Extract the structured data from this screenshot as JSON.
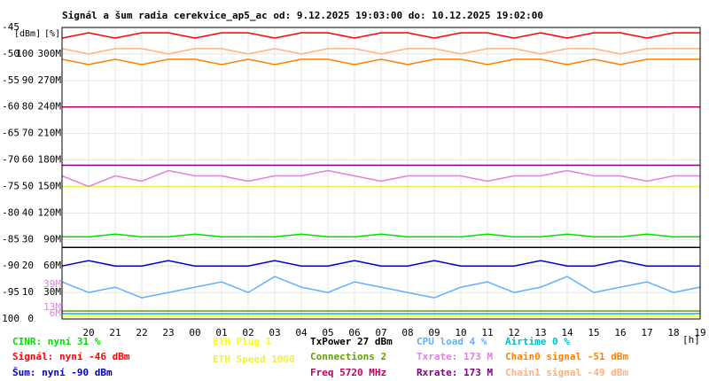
{
  "chart_data": {
    "type": "line",
    "title": "Signál a šum radia cerekvice_ap5_ac od: 9.12.2025 19:03:00 do: 10.12.2025 19:02:00",
    "ylabel": "[dBm]",
    "y2label": "[%]",
    "xlabel": "[h]",
    "xlim": [
      0,
      24
    ],
    "xticks": [
      {
        "value": 1,
        "label": "20"
      },
      {
        "value": 2,
        "label": "21"
      },
      {
        "value": 3,
        "label": "22"
      },
      {
        "value": 4,
        "label": "23"
      },
      {
        "value": 5,
        "label": "00"
      },
      {
        "value": 6,
        "label": "01"
      },
      {
        "value": 7,
        "label": "02"
      },
      {
        "value": 8,
        "label": "03"
      },
      {
        "value": 9,
        "label": "04"
      },
      {
        "value": 10,
        "label": "05"
      },
      {
        "value": 11,
        "label": "06"
      },
      {
        "value": 12,
        "label": "07"
      },
      {
        "value": 13,
        "label": "08"
      },
      {
        "value": 14,
        "label": "09"
      },
      {
        "value": 15,
        "label": "10"
      },
      {
        "value": 16,
        "label": "11"
      },
      {
        "value": 17,
        "label": "12"
      },
      {
        "value": 18,
        "label": "13"
      },
      {
        "value": 19,
        "label": "14"
      },
      {
        "value": 20,
        "label": "15"
      },
      {
        "value": 21,
        "label": "16"
      },
      {
        "value": 22,
        "label": "17"
      },
      {
        "value": 23,
        "label": "18"
      },
      {
        "value": 24,
        "label": "19"
      }
    ],
    "ylim": [
      -100,
      -45
    ],
    "yticks": [
      -45,
      -50,
      -55,
      -60,
      -65,
      -70,
      -75,
      -80,
      -85,
      -90,
      -95,
      -100
    ],
    "y2lim": [
      0,
      110
    ],
    "y2ticks": [
      100,
      90,
      80,
      70,
      60,
      50,
      40,
      30,
      20,
      10,
      0
    ],
    "y3lim": [
      0,
      330
    ],
    "y3ticks": [
      {
        "value": 300,
        "label": "300M"
      },
      {
        "value": 270,
        "label": "270M"
      },
      {
        "value": 240,
        "label": "240M"
      },
      {
        "value": 210,
        "label": "210M"
      },
      {
        "value": 180,
        "label": "180M"
      },
      {
        "value": 150,
        "label": "150M"
      },
      {
        "value": 120,
        "label": "120M"
      },
      {
        "value": 90,
        "label": "90M"
      },
      {
        "value": 60,
        "label": "60M"
      },
      {
        "value": 30,
        "label": "30M"
      }
    ],
    "y3ticks_highlight": [
      {
        "value": 39,
        "label": "39M"
      },
      {
        "value": 13,
        "label": "13M"
      },
      {
        "value": 6,
        "label": "6M"
      }
    ],
    "y3highlight_color": "#e080e0",
    "grid": true,
    "x": [
      0,
      1,
      2,
      3,
      4,
      5,
      6,
      7,
      8,
      9,
      10,
      11,
      12,
      13,
      14,
      15,
      16,
      17,
      18,
      19,
      20,
      21,
      22,
      23,
      24
    ],
    "series": [
      {
        "name": "CINR: nyní 31 %",
        "color": "#00e000",
        "values": [
          -84.5,
          -84.5,
          -84,
          -84.5,
          -84.5,
          -84,
          -84.5,
          -84.5,
          -84.5,
          -84,
          -84.5,
          -84.5,
          -84,
          -84.5,
          -84.5,
          -84.5,
          -84,
          -84.5,
          -84.5,
          -84,
          -84.5,
          -84.5,
          -84,
          -84.5,
          -84.5
        ]
      },
      {
        "name": "Signál: nyní -46 dBm",
        "color": "#ff0000",
        "values": [
          -47,
          -46,
          -47,
          -46,
          -46,
          -47,
          -46,
          -46,
          -47,
          -46,
          -46,
          -47,
          -46,
          -46,
          -47,
          -46,
          -46,
          -47,
          -46,
          -47,
          -46,
          -46,
          -47,
          -46,
          -46
        ]
      },
      {
        "name": "Šum: nyní -90 dBm",
        "color": "#0000c0",
        "values": [
          -90,
          -89,
          -90,
          -90,
          -89,
          -90,
          -90,
          -90,
          -89,
          -90,
          -90,
          -89,
          -90,
          -90,
          -89,
          -90,
          -90,
          -90,
          -89,
          -90,
          -90,
          -89,
          -90,
          -90,
          -90
        ]
      },
      {
        "name": "ETH Plug 1",
        "color": "#ffff00",
        "values": [
          -99.5,
          -99.5,
          -99.5,
          -99.5,
          -99.5,
          -99.5,
          -99.5,
          -99.5,
          -99.5,
          -99.5,
          -99.5,
          -99.5,
          -99.5,
          -99.5,
          -99.5,
          -99.5,
          -99.5,
          -99.5,
          -99.5,
          -99.5,
          -99.5,
          -99.5,
          -99.5,
          -99.5,
          -99.5
        ]
      },
      {
        "name": "ETH Speed 1000",
        "color": "#f0f040",
        "values": [
          -75,
          -75,
          -75,
          -75,
          -75,
          -75,
          -75,
          -75,
          -75,
          -75,
          -75,
          -75,
          -75,
          -75,
          -75,
          -75,
          -75,
          -75,
          -75,
          -75,
          -75,
          -75,
          -75,
          -75,
          -75
        ]
      },
      {
        "name": "TxPower 27 dBm",
        "color": "#000000",
        "values": [
          -86.5,
          -86.5,
          -86.5,
          -86.5,
          -86.5,
          -86.5,
          -86.5,
          -86.5,
          -86.5,
          -86.5,
          -86.5,
          -86.5,
          -86.5,
          -86.5,
          -86.5,
          -86.5,
          -86.5,
          -86.5,
          -86.5,
          -86.5,
          -86.5,
          -86.5,
          -86.5,
          -86.5,
          -86.5
        ]
      },
      {
        "name": "Connections 2",
        "color": "#60a000",
        "values": [
          -98.5,
          -98.5,
          -98.5,
          -98.5,
          -98.5,
          -98.5,
          -98.5,
          -98.5,
          -98.5,
          -98.5,
          -98.5,
          -98.5,
          -98.5,
          -98.5,
          -98.5,
          -98.5,
          -98.5,
          -98.5,
          -98.5,
          -98.5,
          -98.5,
          -98.5,
          -98.5,
          -98.5,
          -98.5
        ]
      },
      {
        "name": "Freq 5720 MHz",
        "color": "#c00060",
        "values": [
          -60,
          -60,
          -60,
          -60,
          -60,
          -60,
          -60,
          -60,
          -60,
          -60,
          -60,
          -60,
          -60,
          -60,
          -60,
          -60,
          -60,
          -60,
          -60,
          -60,
          -60,
          -60,
          -60,
          -60,
          -60
        ]
      },
      {
        "name": "CPU load 4 %",
        "color": "#60b0ff",
        "values": [
          -93,
          -95,
          -94,
          -96,
          -95,
          -94,
          -93,
          -95,
          -92,
          -94,
          -95,
          -93,
          -94,
          -95,
          -96,
          -94,
          -93,
          -95,
          -94,
          -92,
          -95,
          -94,
          -93,
          -95,
          -94
        ]
      },
      {
        "name": "Txrate: 173 M",
        "color": "#e080e0",
        "values": [
          -73,
          -75,
          -73,
          -74,
          -72,
          -73,
          -73,
          -74,
          -73,
          -73,
          -72,
          -73,
          -74,
          -73,
          -73,
          -73,
          -74,
          -73,
          -73,
          -72,
          -73,
          -73,
          -74,
          -73,
          -73
        ]
      },
      {
        "name": "Rxrate: 173 M",
        "color": "#800080",
        "values": [
          -71,
          -71,
          -71,
          -71,
          -71,
          -71,
          -71,
          -71,
          -71,
          -71,
          -71,
          -71,
          -71,
          -71,
          -71,
          -71,
          -71,
          -71,
          -71,
          -71,
          -71,
          -71,
          -71,
          -71,
          -71
        ]
      },
      {
        "name": "Airtime 0 %",
        "color": "#00c0c0",
        "values": [
          -99,
          -99,
          -99,
          -99,
          -99,
          -99,
          -99,
          -99,
          -99,
          -99,
          -99,
          -99,
          -99,
          -99,
          -99,
          -99,
          -99,
          -99,
          -99,
          -99,
          -99,
          -99,
          -99,
          -99,
          -99
        ]
      },
      {
        "name": "Chain0 signal -51 dBm",
        "color": "#ff8000",
        "values": [
          -51,
          -52,
          -51,
          -52,
          -51,
          -51,
          -52,
          -51,
          -52,
          -51,
          -51,
          -52,
          -51,
          -52,
          -51,
          -51,
          -52,
          -51,
          -51,
          -52,
          -51,
          -52,
          -51,
          -51,
          -51
        ]
      },
      {
        "name": "Chain1 signal -49 dBm",
        "color": "#ffb080",
        "values": [
          -49,
          -50,
          -49,
          -49,
          -50,
          -49,
          -49,
          -50,
          -49,
          -50,
          -49,
          -49,
          -50,
          -49,
          -49,
          -50,
          -49,
          -49,
          -50,
          -49,
          -49,
          -50,
          -49,
          -49,
          -49
        ]
      }
    ]
  }
}
